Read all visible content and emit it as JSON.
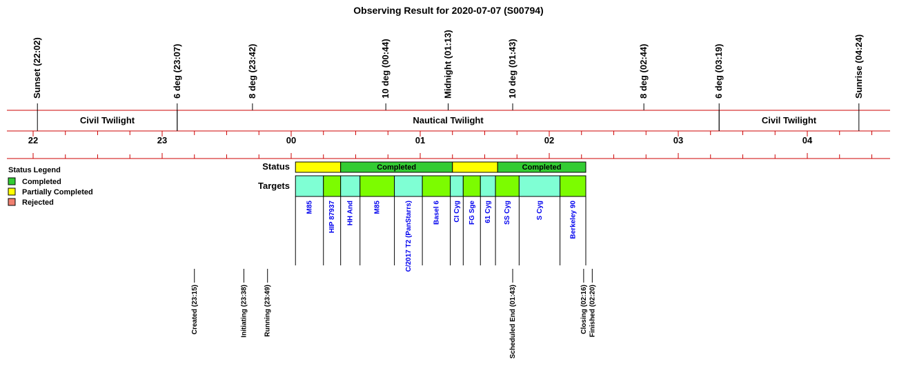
{
  "chart_data": {
    "type": "timeline",
    "title": "Observing Result for 2020-07-07 (S00794)",
    "hour_ticks": [
      "22",
      "23",
      "00",
      "01",
      "02",
      "03",
      "04"
    ],
    "sun_markers": [
      {
        "label": "Sunset (22:02)",
        "time": "22:02"
      },
      {
        "label": "6 deg (23:07)",
        "time": "23:07"
      },
      {
        "label": "8 deg (23:42)",
        "time": "23:42"
      },
      {
        "label": "10 deg (00:44)",
        "time": "00:44"
      },
      {
        "label": "Midnight (01:13)",
        "time": "01:13"
      },
      {
        "label": "10 deg (01:43)",
        "time": "01:43"
      },
      {
        "label": "8 deg (02:44)",
        "time": "02:44"
      },
      {
        "label": "6 deg (03:19)",
        "time": "03:19"
      },
      {
        "label": "Sunrise (04:24)",
        "time": "04:24"
      }
    ],
    "twilight_bands": [
      {
        "label": "Civil Twilight",
        "start": "22:02",
        "end": "23:07"
      },
      {
        "label": "Nautical Twilight",
        "start": "23:07",
        "end": "03:19"
      },
      {
        "label": "Civil Twilight",
        "start": "03:19",
        "end": "04:24"
      }
    ],
    "legend": {
      "title": "Status Legend",
      "items": [
        {
          "label": "Completed",
          "color": "#33cc33"
        },
        {
          "label": "Partially Completed",
          "color": "#ffff00"
        },
        {
          "label": "Rejected",
          "color": "#f08070"
        }
      ]
    },
    "status_row_label": "Status",
    "targets_row_label": "Targets",
    "status_segments": [
      {
        "start": "00:02",
        "end": "00:23",
        "status": "Partially Completed",
        "label": ""
      },
      {
        "start": "00:23",
        "end": "01:15",
        "status": "Completed",
        "label": "Completed"
      },
      {
        "start": "01:15",
        "end": "01:36",
        "status": "Partially Completed",
        "label": ""
      },
      {
        "start": "01:36",
        "end": "02:17",
        "status": "Completed",
        "label": "Completed"
      }
    ],
    "targets": [
      {
        "name": "M85",
        "start": "00:02",
        "end": "00:15",
        "color": "#7fffd4"
      },
      {
        "name": "HIP 87937",
        "start": "00:15",
        "end": "00:23",
        "color": "#7cfc00"
      },
      {
        "name": "HH And",
        "start": "00:23",
        "end": "00:32",
        "color": "#7fffd4"
      },
      {
        "name": "M85",
        "start": "00:32",
        "end": "00:48",
        "color": "#7cfc00"
      },
      {
        "name": "C/2017 T2 (PanStarrs)",
        "start": "00:48",
        "end": "01:01",
        "color": "#7fffd4"
      },
      {
        "name": "Basel 6",
        "start": "01:01",
        "end": "01:14",
        "color": "#7cfc00"
      },
      {
        "name": "CI Cyg",
        "start": "01:14",
        "end": "01:20",
        "color": "#7fffd4"
      },
      {
        "name": "FG Sge",
        "start": "01:20",
        "end": "01:28",
        "color": "#7cfc00"
      },
      {
        "name": "61 Cyg",
        "start": "01:28",
        "end": "01:35",
        "color": "#7fffd4"
      },
      {
        "name": "SS Cyg",
        "start": "01:35",
        "end": "01:46",
        "color": "#7cfc00"
      },
      {
        "name": "S Cyg",
        "start": "01:46",
        "end": "02:05",
        "color": "#7fffd4"
      },
      {
        "name": "Berkeley 90",
        "start": "02:05",
        "end": "02:17",
        "color": "#7cfc00"
      }
    ],
    "events": [
      {
        "label": "Created (23:15)",
        "time": "23:15"
      },
      {
        "label": "Initiating (23:38)",
        "time": "23:38"
      },
      {
        "label": "Running (23:49)",
        "time": "23:49"
      },
      {
        "label": "Scheduled End (01:43)",
        "time": "01:43"
      },
      {
        "label": "Closing (02:16)",
        "time": "02:16"
      },
      {
        "label": "Finished (02:20)",
        "time": "02:20"
      }
    ]
  }
}
